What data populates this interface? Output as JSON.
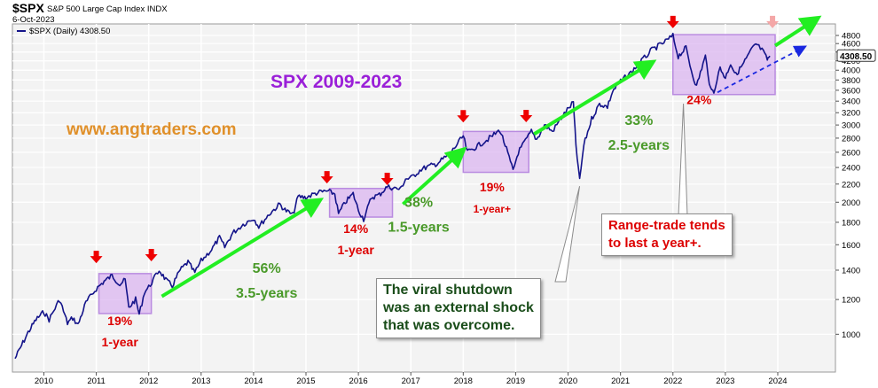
{
  "header": {
    "symbol": "$SPX",
    "description": "S&P 500 Large Cap Index INDX",
    "date": "6-Oct-2023",
    "legend": "$SPX (Daily) 4308.50"
  },
  "colors": {
    "price": "#14148a",
    "up_arrow": "#22ee22",
    "box_fill": "#d9b3f0",
    "box_stroke": "#b98be0",
    "marker": "#ee0000",
    "pale_marker": "#f4a7a7",
    "title": "#9a1fd8",
    "website": "#e0902a",
    "gain_text": "#4a9a2a",
    "range_text": "#dd0000",
    "proj_blue": "#1a28e0"
  },
  "chart_data": {
    "type": "line",
    "title": "SPX  2009-2023",
    "website": "www.angtraders.com",
    "yscale": "log",
    "ylim": [
      820,
      5100
    ],
    "xlim": [
      2009.4,
      2025.1
    ],
    "grid": true,
    "last_value": "4308.50",
    "x_tick_labels": [
      "2010",
      "2011",
      "2012",
      "2013",
      "2014",
      "2015",
      "2016",
      "2017",
      "2018",
      "2019",
      "2020",
      "2021",
      "2022",
      "2023",
      "2024"
    ],
    "y_tick_labels": [
      "1000",
      "1200",
      "1400",
      "1600",
      "1800",
      "2000",
      "2200",
      "2400",
      "2600",
      "2800",
      "3000",
      "3200",
      "3400",
      "3600",
      "3800",
      "4000",
      "4200",
      "4400",
      "4600",
      "4800"
    ],
    "y_tick_values": [
      1000,
      1200,
      1400,
      1600,
      1800,
      2000,
      2200,
      2400,
      2600,
      2800,
      3000,
      3200,
      3400,
      3600,
      3800,
      4000,
      4200,
      4400,
      4600,
      4800
    ],
    "series": [
      {
        "values_approx": [
          [
            2009.45,
            880
          ],
          [
            2009.55,
            930
          ],
          [
            2009.7,
            1010
          ],
          [
            2009.85,
            1080
          ],
          [
            2010.0,
            1125
          ],
          [
            2010.1,
            1080
          ],
          [
            2010.3,
            1200
          ],
          [
            2010.45,
            1060
          ],
          [
            2010.55,
            1090
          ],
          [
            2010.65,
            1050
          ],
          [
            2010.8,
            1180
          ],
          [
            2011.0,
            1270
          ],
          [
            2011.15,
            1320
          ],
          [
            2011.3,
            1360
          ],
          [
            2011.45,
            1300
          ],
          [
            2011.55,
            1330
          ],
          [
            2011.62,
            1150
          ],
          [
            2011.75,
            1200
          ],
          [
            2011.82,
            1110
          ],
          [
            2011.92,
            1250
          ],
          [
            2012.0,
            1280
          ],
          [
            2012.2,
            1400
          ],
          [
            2012.35,
            1320
          ],
          [
            2012.45,
            1290
          ],
          [
            2012.6,
            1400
          ],
          [
            2012.75,
            1460
          ],
          [
            2012.88,
            1380
          ],
          [
            2013.0,
            1470
          ],
          [
            2013.2,
            1560
          ],
          [
            2013.35,
            1660
          ],
          [
            2013.45,
            1580
          ],
          [
            2013.6,
            1700
          ],
          [
            2013.8,
            1780
          ],
          [
            2014.0,
            1840
          ],
          [
            2014.1,
            1760
          ],
          [
            2014.3,
            1880
          ],
          [
            2014.5,
            1980
          ],
          [
            2014.6,
            1920
          ],
          [
            2014.75,
            1870
          ],
          [
            2014.85,
            2060
          ],
          [
            2015.0,
            2050
          ],
          [
            2015.2,
            2100
          ],
          [
            2015.4,
            2120
          ],
          [
            2015.55,
            2090
          ],
          [
            2015.62,
            1880
          ],
          [
            2015.75,
            2000
          ],
          [
            2015.9,
            2090
          ],
          [
            2016.0,
            1920
          ],
          [
            2016.1,
            1830
          ],
          [
            2016.25,
            2050
          ],
          [
            2016.4,
            2080
          ],
          [
            2016.55,
            2170
          ],
          [
            2016.8,
            2140
          ],
          [
            2016.9,
            2260
          ],
          [
            2017.0,
            2270
          ],
          [
            2017.2,
            2380
          ],
          [
            2017.5,
            2450
          ],
          [
            2017.75,
            2580
          ],
          [
            2018.0,
            2830
          ],
          [
            2018.08,
            2600
          ],
          [
            2018.3,
            2700
          ],
          [
            2018.5,
            2800
          ],
          [
            2018.7,
            2920
          ],
          [
            2018.8,
            2700
          ],
          [
            2018.95,
            2360
          ],
          [
            2019.05,
            2600
          ],
          [
            2019.3,
            2900
          ],
          [
            2019.4,
            2780
          ],
          [
            2019.55,
            3000
          ],
          [
            2019.7,
            2900
          ],
          [
            2019.9,
            3150
          ],
          [
            2020.1,
            3380
          ],
          [
            2020.15,
            2700
          ],
          [
            2020.22,
            2237
          ],
          [
            2020.3,
            2700
          ],
          [
            2020.45,
            3100
          ],
          [
            2020.6,
            3350
          ],
          [
            2020.75,
            3300
          ],
          [
            2020.85,
            3580
          ],
          [
            2021.0,
            3770
          ],
          [
            2021.2,
            3950
          ],
          [
            2021.4,
            4200
          ],
          [
            2021.6,
            4450
          ],
          [
            2021.8,
            4600
          ],
          [
            2022.0,
            4790
          ],
          [
            2022.1,
            4300
          ],
          [
            2022.25,
            4500
          ],
          [
            2022.35,
            4000
          ],
          [
            2022.45,
            3670
          ],
          [
            2022.55,
            4050
          ],
          [
            2022.62,
            4300
          ],
          [
            2022.72,
            3600
          ],
          [
            2022.78,
            3580
          ],
          [
            2022.9,
            4050
          ],
          [
            2023.0,
            3840
          ],
          [
            2023.1,
            4150
          ],
          [
            2023.2,
            3900
          ],
          [
            2023.35,
            4150
          ],
          [
            2023.5,
            4450
          ],
          [
            2023.58,
            4590
          ],
          [
            2023.7,
            4450
          ],
          [
            2023.8,
            4230
          ],
          [
            2023.85,
            4308.5
          ]
        ]
      }
    ],
    "range_boxes": [
      {
        "x": [
          2011.05,
          2012.05
        ],
        "y": [
          1115,
          1375
        ]
      },
      {
        "x": [
          2015.45,
          2016.65
        ],
        "y": [
          1850,
          2150
        ]
      },
      {
        "x": [
          2018.0,
          2019.25
        ],
        "y": [
          2340,
          2900
        ]
      },
      {
        "x": [
          2022.0,
          2023.95
        ],
        "y": [
          3520,
          4820
        ]
      }
    ],
    "markers": [
      {
        "x": 2011.0,
        "y": 1500
      },
      {
        "x": 2012.05,
        "y": 1515
      },
      {
        "x": 2015.4,
        "y": 2280
      },
      {
        "x": 2016.55,
        "y": 2260
      },
      {
        "x": 2018.0,
        "y": 3140
      },
      {
        "x": 2019.2,
        "y": 3145
      },
      {
        "x": 2022.0,
        "y": 5150
      },
      {
        "x": 2023.9,
        "y": 5150,
        "pale": true
      }
    ],
    "gain_arrows": [
      {
        "from": [
          2012.25,
          1220
        ],
        "to": [
          2015.2,
          2000
        ]
      },
      {
        "from": [
          2016.85,
          1980
        ],
        "to": [
          2017.95,
          2600
        ]
      },
      {
        "from": [
          2019.35,
          2860
        ],
        "to": [
          2021.55,
          4130
        ]
      },
      {
        "from": [
          2023.95,
          4550
        ],
        "to": [
          2024.7,
          5200
        ]
      }
    ],
    "proj_arrow": {
      "from": [
        2022.85,
        3560
      ],
      "to": [
        2024.45,
        4480
      ]
    },
    "annotations": [
      {
        "lines": [
          "19%",
          "1-year"
        ],
        "x": 2011.45,
        "y": 1050,
        "color": "red"
      },
      {
        "lines": [
          "14%",
          "1-year"
        ],
        "x": 2015.95,
        "y": 1700,
        "color": "red"
      },
      {
        "lines": [
          "19%",
          "1-year+"
        ],
        "x": 2018.55,
        "y": 2120,
        "color": "red"
      },
      {
        "lines": [
          "24%"
        ],
        "x": 2022.5,
        "y": 3350,
        "color": "red"
      },
      {
        "lines": [
          "56%",
          "3.5-years"
        ],
        "x": 2014.25,
        "y": 1380,
        "color": "green"
      },
      {
        "lines": [
          "38%",
          "1.5-years"
        ],
        "x": 2017.15,
        "y": 1950,
        "color": "green"
      },
      {
        "lines": [
          "33%",
          "2.5-years"
        ],
        "x": 2021.35,
        "y": 3000,
        "color": "green"
      }
    ],
    "notes": [
      {
        "lines": [
          "The viral shutdown",
          "was an external shock",
          "that was overcome."
        ],
        "pointer_to": [
          2020.22,
          2237
        ]
      },
      {
        "lines": [
          "Range-trade tends",
          "to last a year+."
        ],
        "pointer_to": [
          2022.2,
          3450
        ]
      }
    ]
  }
}
